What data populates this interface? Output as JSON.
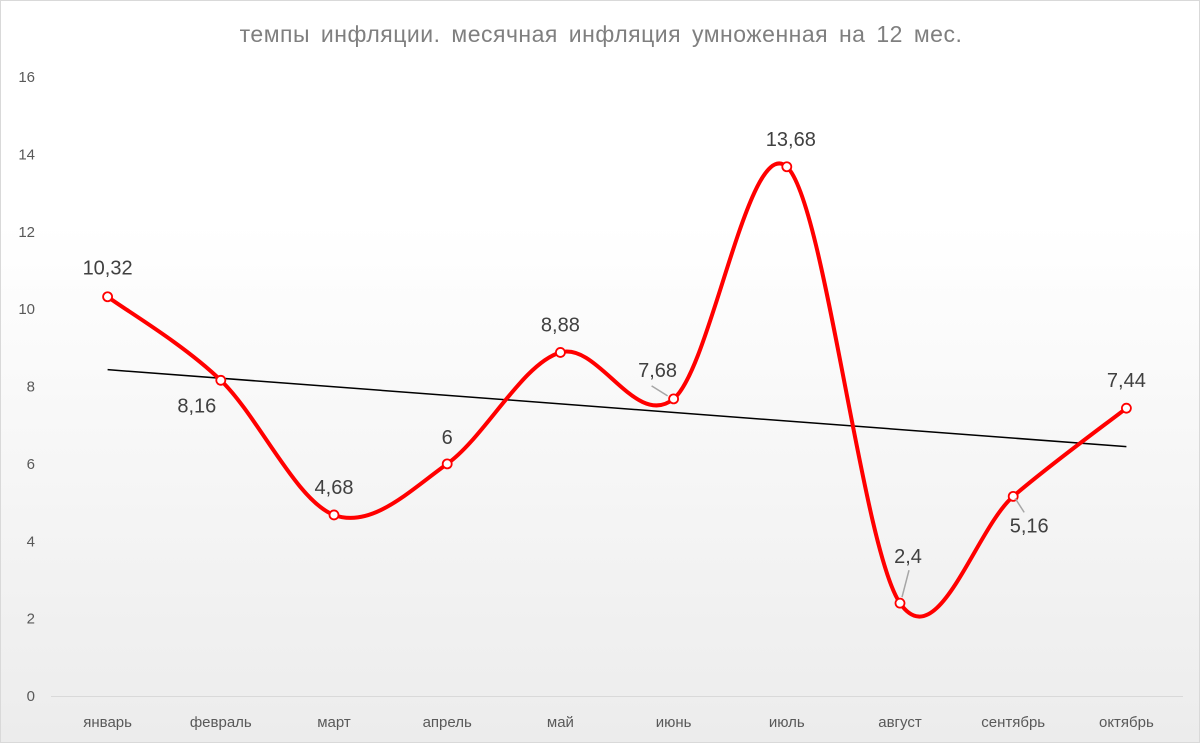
{
  "chart_data": {
    "type": "line",
    "title": "темпы инфляции. месячная инфляция умноженная на 12 мес.",
    "categories": [
      "январь",
      "февраль",
      "март",
      "апрель",
      "май",
      "июнь",
      "июль",
      "август",
      "сентябрь",
      "октябрь"
    ],
    "series": [
      {
        "values": [
          10.32,
          8.16,
          4.68,
          6,
          8.88,
          7.68,
          13.68,
          2.4,
          5.16,
          7.44
        ],
        "labels": [
          "10,32",
          "8,16",
          "4,68",
          "6",
          "8,88",
          "7,68",
          "13,68",
          "2,4",
          "5,16",
          "7,44"
        ],
        "color": "#ff0000",
        "smooth": true
      }
    ],
    "trendline": {
      "type": "linear",
      "color": "#000000"
    },
    "yticks": [
      "0",
      "2",
      "4",
      "6",
      "8",
      "10",
      "12",
      "14",
      "16"
    ],
    "ylim": [
      0,
      16
    ],
    "grid": false,
    "legend": "none"
  }
}
